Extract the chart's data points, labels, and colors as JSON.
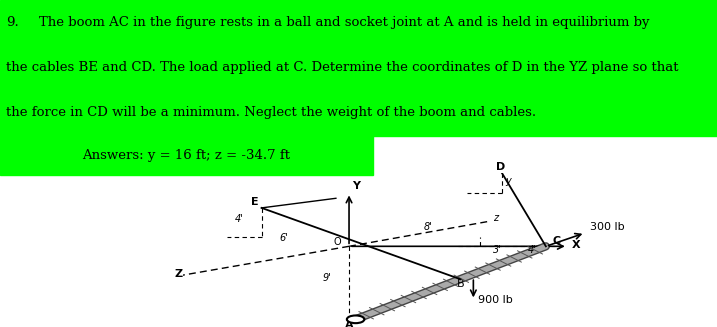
{
  "title_num": "9.",
  "text_line1": "The boom AC in the figure rests in a ball and socket joint at A and is held in equilibrium by",
  "text_line2": "the cables BE and CD. The load applied at C. Determine the coordinates of D in the YZ plane so that",
  "text_line3": "the force in CD will be a minimum. Neglect the weight of the boom and cables.",
  "answer_text": "Answers: y = 16 ft; z = -34.7 ft",
  "green": "#00FF00",
  "load1": "300 lb",
  "load2": "900 lb",
  "text_fontsize": 9.5,
  "answer_fontsize": 9.5,
  "diagram_bg": "#c8c8c8"
}
